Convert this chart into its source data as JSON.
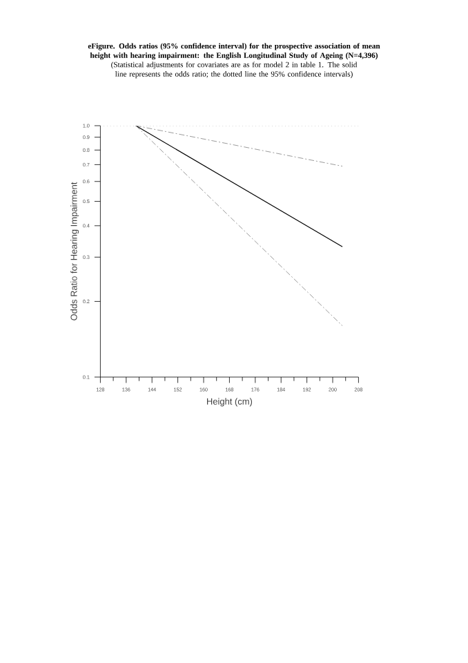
{
  "chart_data": {
    "type": "line",
    "title": "eFigure. Odds ratios (95% confidence interval) for the prospective association of mean height with hearing impairment: the English Longitudinal Study of Ageing (N=4,396)",
    "subtitle": "(Statistical adjustments for covariates are as for model 2 in table 1.  The solid line represents the odds ratio; the dotted line the 95% confidence intervals)",
    "xlabel": "Height (cm)",
    "ylabel": "Odds Ratio for Hearing Impairment",
    "log": "y",
    "grid": false,
    "marker": "none",
    "x": [
      139,
      203
    ],
    "series": [
      {
        "color": "#000000",
        "line_style": "solid",
        "values": [
          1.0,
          0.33
        ]
      },
      {
        "color": "#808080",
        "line_style": "dashed",
        "values": [
          1.0,
          0.69
        ]
      },
      {
        "color": "#808080",
        "line_style": "dashed",
        "values": [
          1.0,
          0.16
        ]
      }
    ],
    "xlim": [
      128,
      208
    ],
    "xticks": [
      128,
      136,
      144,
      152,
      160,
      168,
      176,
      184,
      192,
      200,
      208
    ],
    "ylim": [
      0.1,
      1.0
    ],
    "yticks": [
      0.1,
      0.2,
      0.3,
      0.4,
      0.5,
      0.6,
      0.7,
      0.8,
      0.9,
      {
        "value": 1.0,
        "label": "1.0"
      }
    ],
    "ref_lines": [
      {
        "axis": "y",
        "value": 1.0,
        "color": "#808080",
        "line_style": "dotted"
      }
    ]
  }
}
